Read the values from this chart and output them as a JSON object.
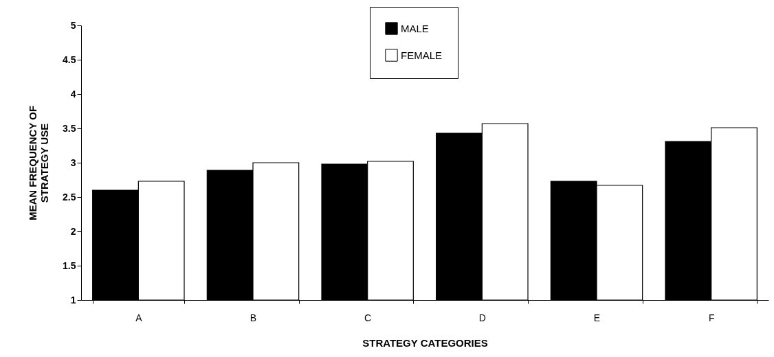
{
  "chart_data": {
    "type": "bar",
    "xlabel": "STRATEGY CATEGORIES",
    "ylabel": "MEAN FREQUENCY OF\nSTRATEGY USE",
    "categories": [
      "A",
      "B",
      "C",
      "D",
      "E",
      "F"
    ],
    "series": [
      {
        "name": "MALE",
        "color": "#000000",
        "values": [
          2.6,
          2.89,
          2.98,
          3.43,
          2.73,
          3.31
        ]
      },
      {
        "name": "FEMALE",
        "color": "#ffffff",
        "values": [
          2.73,
          3.0,
          3.02,
          3.57,
          2.67,
          3.51
        ]
      }
    ],
    "ylim": [
      1,
      5
    ],
    "yticks": [
      1,
      1.5,
      2,
      2.5,
      3,
      3.5,
      4,
      4.5,
      5
    ],
    "grid": false,
    "legend": "top"
  }
}
